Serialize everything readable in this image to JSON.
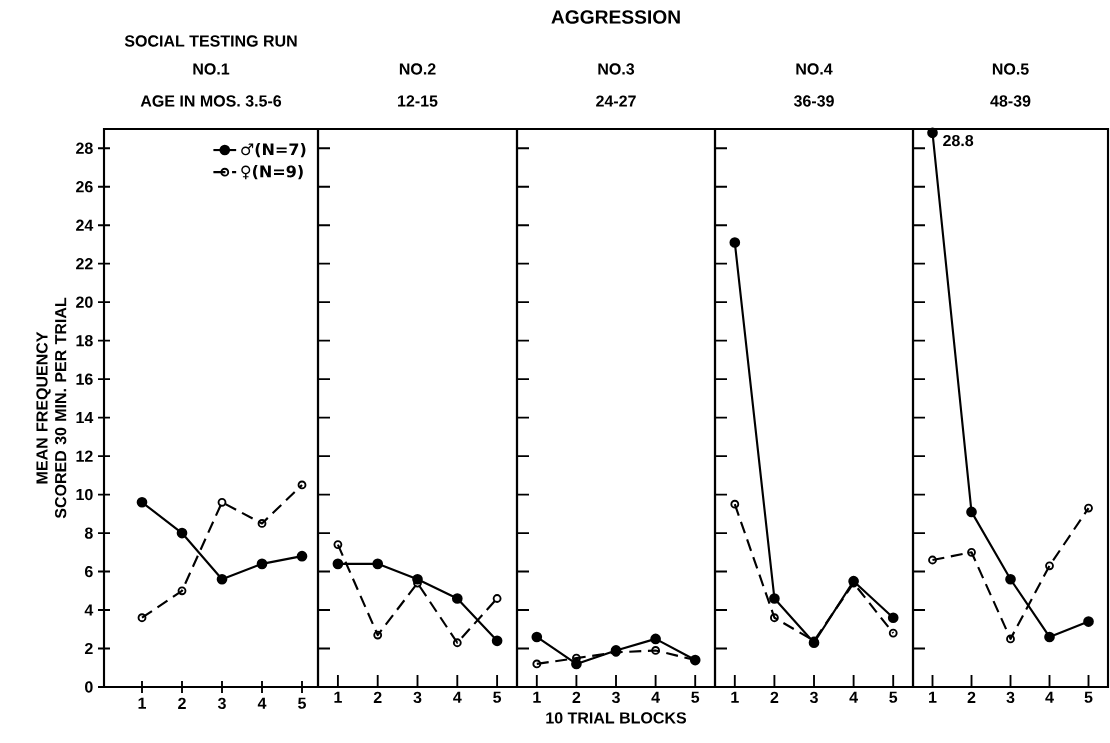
{
  "chart_data": [
    {
      "type": "line",
      "title": "NO.1",
      "subtitle": "AGE IN MOS. 3.5-6",
      "annotations": [
        "SOCIAL TESTING RUN"
      ],
      "ylabel": "MEAN FREQUENCY SCORED 30 MIN. PER TRIAL",
      "x": [
        1,
        2,
        3,
        4,
        5
      ],
      "xlim": [
        0.05,
        5.4
      ],
      "xticks": [
        1,
        2,
        3,
        4,
        5
      ],
      "ylim": [
        0,
        29
      ],
      "yticks": [
        0,
        2,
        4,
        6,
        8,
        10,
        12,
        14,
        16,
        18,
        20,
        22,
        24,
        26,
        28
      ],
      "marker": "circle",
      "legend": "top right",
      "series": [
        {
          "name": "♂(N=7)",
          "color": "#000000",
          "line_style": "solid",
          "values": [
            9.6,
            8.0,
            5.6,
            6.4,
            6.8
          ]
        },
        {
          "name": "♀(N=9)",
          "color": "#000000",
          "line_style": "dashed",
          "values": [
            3.6,
            5.0,
            9.6,
            8.5,
            10.5
          ]
        }
      ]
    },
    {
      "type": "line",
      "title": "NO.2",
      "subtitle": "12-15",
      "x": [
        1,
        2,
        3,
        4,
        5
      ],
      "xlim": [
        0.5,
        5.5
      ],
      "xticks": [
        1,
        2,
        3,
        4,
        5
      ],
      "ylim": [
        0,
        29
      ],
      "yticks": [
        0,
        2,
        4,
        6,
        8,
        10,
        12,
        14,
        16,
        18,
        20,
        22,
        24,
        26,
        28
      ],
      "tick_labels": "x",
      "marker": "circle",
      "series": [
        {
          "color": "#000000",
          "line_style": "solid",
          "values": [
            6.4,
            6.4,
            5.6,
            4.6,
            2.4
          ]
        },
        {
          "color": "#000000",
          "line_style": "dashed",
          "values": [
            7.4,
            2.7,
            5.4,
            2.3,
            4.6
          ]
        }
      ]
    },
    {
      "type": "line",
      "title": "NO.3",
      "subtitle": "24-27",
      "annotations": [
        "AGGRESSION"
      ],
      "xlabel": "10 TRIAL BLOCKS",
      "x": [
        1,
        2,
        3,
        4,
        5
      ],
      "xlim": [
        0.5,
        5.5
      ],
      "xticks": [
        1,
        2,
        3,
        4,
        5
      ],
      "ylim": [
        0,
        29
      ],
      "yticks": [
        0,
        2,
        4,
        6,
        8,
        10,
        12,
        14,
        16,
        18,
        20,
        22,
        24,
        26,
        28
      ],
      "tick_labels": "x",
      "marker": "circle",
      "series": [
        {
          "color": "#000000",
          "line_style": "solid",
          "values": [
            2.6,
            1.2,
            1.9,
            2.5,
            1.4
          ]
        },
        {
          "color": "#000000",
          "line_style": "dashed",
          "values": [
            1.2,
            1.5,
            1.8,
            1.9,
            1.4
          ]
        }
      ]
    },
    {
      "type": "line",
      "title": "NO.4",
      "subtitle": "36-39",
      "x": [
        1,
        2,
        3,
        4,
        5
      ],
      "xlim": [
        0.5,
        5.5
      ],
      "xticks": [
        1,
        2,
        3,
        4,
        5
      ],
      "ylim": [
        0,
        29
      ],
      "yticks": [
        0,
        2,
        4,
        6,
        8,
        10,
        12,
        14,
        16,
        18,
        20,
        22,
        24,
        26,
        28
      ],
      "tick_labels": "x",
      "marker": "circle",
      "series": [
        {
          "color": "#000000",
          "line_style": "solid",
          "values": [
            23.1,
            4.6,
            2.3,
            5.5,
            3.6
          ]
        },
        {
          "color": "#000000",
          "line_style": "dashed",
          "values": [
            9.5,
            3.6,
            2.4,
            5.4,
            2.8
          ]
        }
      ]
    },
    {
      "type": "line",
      "title": "NO.5",
      "subtitle": "48-39",
      "annotations": [
        {
          "text": "28.8",
          "x": 1,
          "y": 28.8
        }
      ],
      "x": [
        1,
        2,
        3,
        4,
        5
      ],
      "xlim": [
        0.5,
        5.5
      ],
      "xticks": [
        1,
        2,
        3,
        4,
        5
      ],
      "ylim": [
        0,
        29
      ],
      "yticks": [
        0,
        2,
        4,
        6,
        8,
        10,
        12,
        14,
        16,
        18,
        20,
        22,
        24,
        26,
        28
      ],
      "tick_labels": "x",
      "marker": "circle",
      "series": [
        {
          "color": "#000000",
          "line_style": "solid",
          "values": [
            28.8,
            9.1,
            5.6,
            2.6,
            3.4
          ]
        },
        {
          "color": "#000000",
          "line_style": "dashed",
          "values": [
            6.6,
            7.0,
            2.5,
            6.3,
            9.3
          ]
        }
      ]
    }
  ]
}
